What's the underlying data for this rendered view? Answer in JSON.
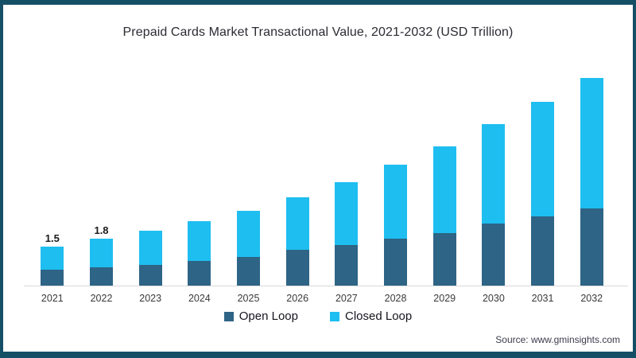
{
  "frame": {
    "border_color": "#154f66"
  },
  "title": "Prepaid Cards Market Transactional Value, 2021-2032 (USD Trillion)",
  "source": "Source: www.gminsights.com",
  "legend": {
    "items": [
      {
        "label": "Open Loop",
        "color": "#2e6485"
      },
      {
        "label": "Closed Loop",
        "color": "#1ebef0"
      }
    ]
  },
  "chart_data": {
    "type": "bar",
    "stacked": true,
    "title": "Prepaid Cards Market Transactional Value, 2021-2032 (USD Trillion)",
    "unit": "USD Trillion",
    "categories": [
      "2021",
      "2022",
      "2023",
      "2024",
      "2025",
      "2026",
      "2027",
      "2028",
      "2029",
      "2030",
      "2031",
      "2032"
    ],
    "series": [
      {
        "name": "Open Loop",
        "color": "#2e6485",
        "values": [
          0.6,
          0.7,
          0.8,
          0.95,
          1.1,
          1.35,
          1.55,
          1.8,
          2.0,
          2.35,
          2.65,
          2.95
        ]
      },
      {
        "name": "Closed Loop",
        "color": "#1ebef0",
        "values": [
          0.9,
          1.1,
          1.3,
          1.5,
          1.75,
          2.0,
          2.4,
          2.8,
          3.3,
          3.8,
          4.35,
          4.95
        ]
      }
    ],
    "totals": [
      1.5,
      1.8,
      2.1,
      2.45,
      2.85,
      3.35,
      3.95,
      4.6,
      5.3,
      6.15,
      7.0,
      7.9
    ],
    "data_labels": {
      "2021": "1.5",
      "2022": "1.8"
    },
    "ylim": [
      0,
      8
    ],
    "grid": false,
    "y_axis_visible": false,
    "legend_position": "bottom",
    "axis_line_color": "#d9d9d9"
  }
}
